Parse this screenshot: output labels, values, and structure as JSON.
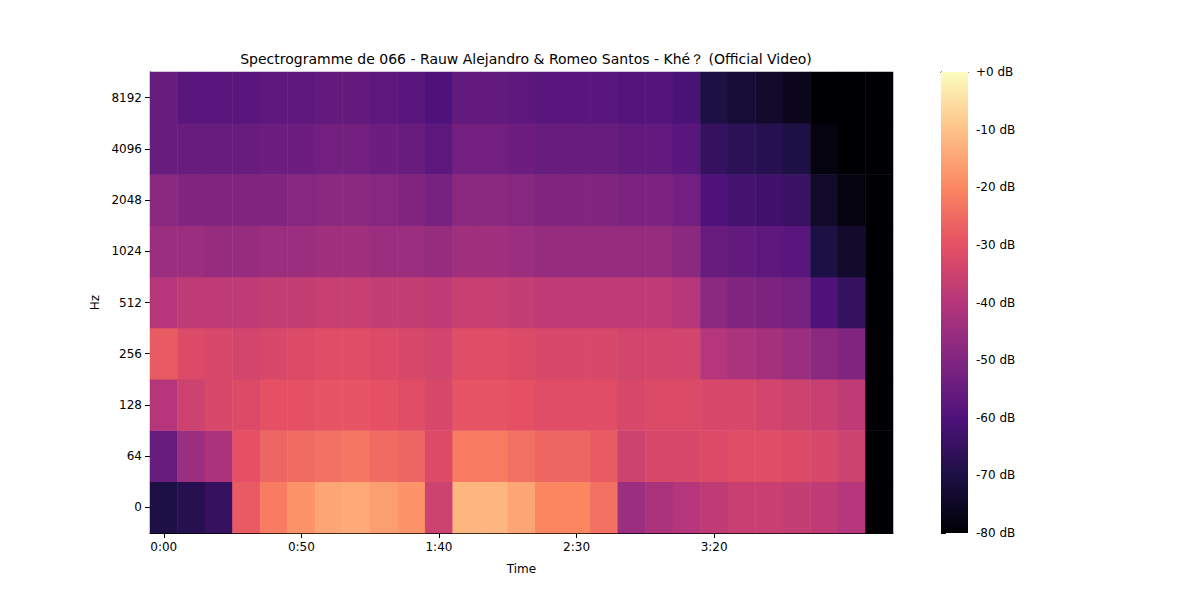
{
  "chart_data": {
    "type": "heatmap",
    "title": "Spectrogramme de 066 - Rauw Alejandro & Romeo Santos - Khé？ (Official Video)",
    "x_label": "Time",
    "y_label": "Hz",
    "categories": [
      "0:00",
      null,
      null,
      null,
      null,
      "0:50",
      null,
      null,
      null,
      null,
      "1:40",
      null,
      null,
      null,
      null,
      "2:30",
      null,
      null,
      null,
      null,
      "3:20",
      null,
      null,
      null,
      null,
      null,
      null
    ],
    "y_categories": [
      0,
      64,
      128,
      256,
      512,
      1024,
      2048,
      4096,
      8192
    ],
    "values": [
      [
        -70,
        -55,
        -40,
        -28,
        -40,
        -45,
        -48,
        -55,
        -55
      ],
      [
        -68,
        -45,
        -35,
        -32,
        -38,
        -45,
        -50,
        -55,
        -58
      ],
      [
        -65,
        -42,
        -33,
        -33,
        -38,
        -46,
        -50,
        -55,
        -58
      ],
      [
        -28,
        -30,
        -32,
        -34,
        -38,
        -46,
        -50,
        -55,
        -58
      ],
      [
        -22,
        -26,
        -30,
        -33,
        -37,
        -45,
        -50,
        -54,
        -57
      ],
      [
        -18,
        -25,
        -30,
        -32,
        -37,
        -45,
        -49,
        -54,
        -57
      ],
      [
        -15,
        -24,
        -29,
        -31,
        -36,
        -44,
        -48,
        -53,
        -56
      ],
      [
        -14,
        -23,
        -29,
        -31,
        -36,
        -44,
        -48,
        -53,
        -56
      ],
      [
        -16,
        -25,
        -30,
        -32,
        -37,
        -45,
        -49,
        -54,
        -57
      ],
      [
        -18,
        -26,
        -31,
        -33,
        -37,
        -45,
        -50,
        -55,
        -58
      ],
      [
        -35,
        -32,
        -33,
        -34,
        -38,
        -46,
        -52,
        -57,
        -60
      ],
      [
        -12,
        -22,
        -29,
        -31,
        -36,
        -44,
        -48,
        -53,
        -56
      ],
      [
        -12,
        -22,
        -29,
        -31,
        -36,
        -44,
        -48,
        -53,
        -56
      ],
      [
        -15,
        -24,
        -30,
        -32,
        -37,
        -45,
        -49,
        -54,
        -57
      ],
      [
        -20,
        -26,
        -31,
        -33,
        -38,
        -46,
        -50,
        -55,
        -58
      ],
      [
        -20,
        -26,
        -31,
        -33,
        -38,
        -46,
        -50,
        -55,
        -58
      ],
      [
        -24,
        -28,
        -31,
        -33,
        -38,
        -46,
        -50,
        -55,
        -58
      ],
      [
        -45,
        -35,
        -33,
        -34,
        -38,
        -46,
        -51,
        -56,
        -59
      ],
      [
        -42,
        -33,
        -32,
        -34,
        -38,
        -46,
        -51,
        -56,
        -59
      ],
      [
        -40,
        -33,
        -32,
        -34,
        -40,
        -48,
        -53,
        -58,
        -61
      ],
      [
        -38,
        -32,
        -33,
        -40,
        -48,
        -55,
        -60,
        -65,
        -70
      ],
      [
        -36,
        -31,
        -33,
        -42,
        -50,
        -56,
        -62,
        -67,
        -72
      ],
      [
        -36,
        -31,
        -34,
        -43,
        -51,
        -57,
        -63,
        -68,
        -74
      ],
      [
        -37,
        -32,
        -35,
        -45,
        -52,
        -58,
        -64,
        -70,
        -76
      ],
      [
        -38,
        -33,
        -36,
        -48,
        -60,
        -70,
        -74,
        -78,
        -80
      ],
      [
        -40,
        -35,
        -38,
        -50,
        -65,
        -74,
        -78,
        -80,
        -80
      ],
      [
        -80,
        -80,
        -80,
        -80,
        -80,
        -80,
        -80,
        -80,
        -80
      ]
    ],
    "colorbar": {
      "range": [
        -80,
        0
      ],
      "ticks": [
        {
          "value": 0,
          "label": "+0 dB"
        },
        {
          "value": -10,
          "label": "-10 dB"
        },
        {
          "value": -20,
          "label": "-20 dB"
        },
        {
          "value": -30,
          "label": "-30 dB"
        },
        {
          "value": -40,
          "label": "-40 dB"
        },
        {
          "value": -50,
          "label": "-50 dB"
        },
        {
          "value": -60,
          "label": "-60 dB"
        },
        {
          "value": -70,
          "label": "-70 dB"
        },
        {
          "value": -80,
          "label": "-80 dB"
        }
      ]
    }
  }
}
